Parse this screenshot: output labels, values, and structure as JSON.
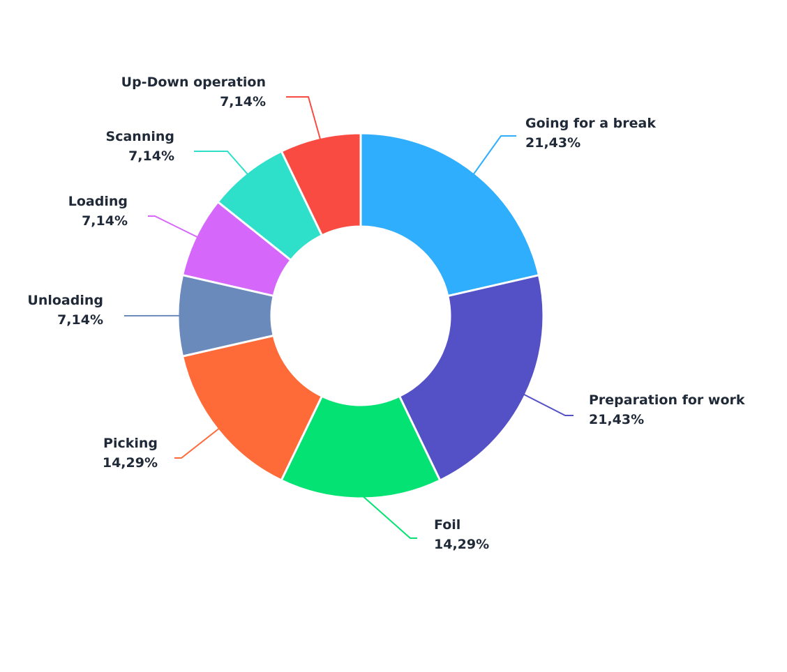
{
  "chart_data": {
    "type": "pie",
    "donut": true,
    "title": "",
    "legend": "none",
    "slices": [
      {
        "label": "Going for a break",
        "value": 21.43,
        "value_label": "21,43%",
        "color": "#2eaefc"
      },
      {
        "label": "Preparation for work",
        "value": 21.43,
        "value_label": "21,43%",
        "color": "#5451c6"
      },
      {
        "label": "Foil",
        "value": 14.29,
        "value_label": "14,29%",
        "color": "#03e272"
      },
      {
        "label": "Picking",
        "value": 14.29,
        "value_label": "14,29%",
        "color": "#fe6b39"
      },
      {
        "label": "Unloading",
        "value": 7.14,
        "value_label": "7,14%",
        "color": "#6b8abc"
      },
      {
        "label": "Loading",
        "value": 7.14,
        "value_label": "7,14%",
        "color": "#d568fb"
      },
      {
        "label": "Scanning",
        "value": 7.14,
        "value_label": "7,14%",
        "color": "#2ee0ca"
      },
      {
        "label": "Up-Down operation",
        "value": 7.14,
        "value_label": "7,14%",
        "color": "#fa4b42"
      }
    ]
  }
}
